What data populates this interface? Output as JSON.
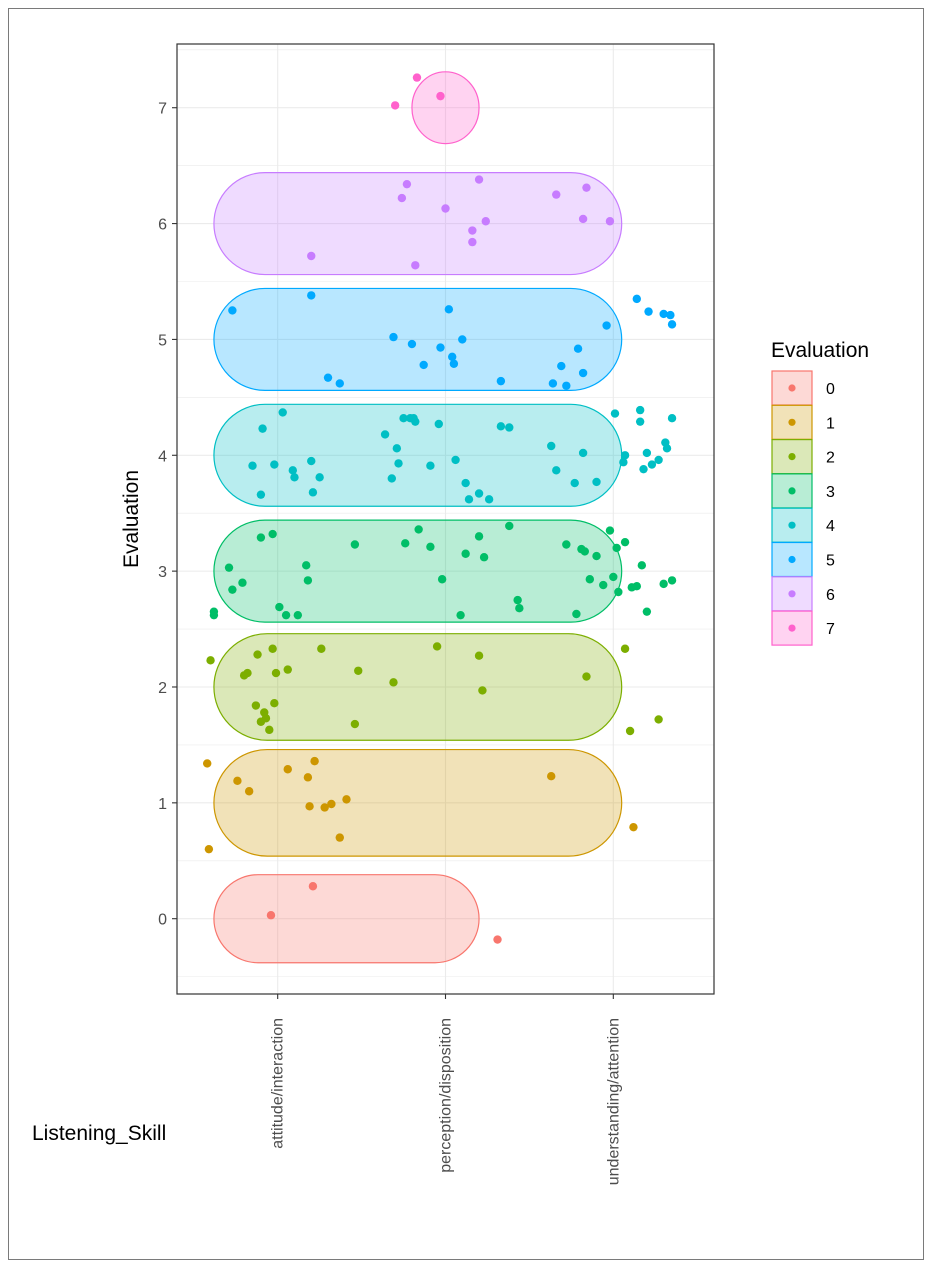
{
  "chart_data": {
    "type": "scatter",
    "title": "",
    "xlabel": "Listening_Skill",
    "ylabel": "Evaluation",
    "categories": [
      "attitude/interaction",
      "perception/disposition",
      "understanding/attention"
    ],
    "y_ticks": [
      0,
      1,
      2,
      3,
      4,
      5,
      6,
      7
    ],
    "ylim": [
      -0.65,
      7.55
    ],
    "xlim": [
      0.4,
      3.6
    ],
    "grid": true,
    "legend": {
      "title": "Evaluation",
      "position": "right",
      "entries": [
        "0",
        "1",
        "2",
        "3",
        "4",
        "5",
        "6",
        "7"
      ]
    },
    "colors": [
      "#F8766D",
      "#CD9600",
      "#7CAE00",
      "#00BE67",
      "#00BFC4",
      "#00A9FF",
      "#C77CFF",
      "#FF61CC"
    ],
    "ellipses": [
      {
        "group": "0",
        "x_range": [
          0.62,
          2.2
        ],
        "y_range": [
          -0.38,
          0.38
        ]
      },
      {
        "group": "1",
        "x_range": [
          0.62,
          3.05
        ],
        "y_range": [
          0.54,
          1.46
        ]
      },
      {
        "group": "2",
        "x_range": [
          0.62,
          3.05
        ],
        "y_range": [
          1.54,
          2.46
        ]
      },
      {
        "group": "3",
        "x_range": [
          0.62,
          3.05
        ],
        "y_range": [
          2.56,
          3.44
        ]
      },
      {
        "group": "4",
        "x_range": [
          0.62,
          3.05
        ],
        "y_range": [
          3.56,
          4.44
        ]
      },
      {
        "group": "5",
        "x_range": [
          0.62,
          3.05
        ],
        "y_range": [
          4.56,
          5.44
        ]
      },
      {
        "group": "6",
        "x_range": [
          0.62,
          3.05
        ],
        "y_range": [
          5.56,
          6.44
        ]
      },
      {
        "group": "7",
        "x_range": [
          1.8,
          2.2
        ],
        "y_range": [
          6.69,
          7.31
        ]
      }
    ],
    "series": [
      {
        "name": "0",
        "points": [
          [
            0.96,
            0.03
          ],
          [
            1.21,
            0.28
          ],
          [
            2.31,
            -0.18
          ]
        ]
      },
      {
        "name": "1",
        "points": [
          [
            0.58,
            1.34
          ],
          [
            0.59,
            0.6
          ],
          [
            0.76,
            1.19
          ],
          [
            0.83,
            1.1
          ],
          [
            1.06,
            1.29
          ],
          [
            1.18,
            1.22
          ],
          [
            1.19,
            0.97
          ],
          [
            1.22,
            1.36
          ],
          [
            1.28,
            0.96
          ],
          [
            1.32,
            0.99
          ],
          [
            1.37,
            0.7
          ],
          [
            1.41,
            1.03
          ],
          [
            2.63,
            1.23
          ],
          [
            3.12,
            0.79
          ]
        ]
      },
      {
        "name": "2",
        "points": [
          [
            0.6,
            2.23
          ],
          [
            0.8,
            2.1
          ],
          [
            0.82,
            2.12
          ],
          [
            0.87,
            1.84
          ],
          [
            0.88,
            2.28
          ],
          [
            0.9,
            1.7
          ],
          [
            0.92,
            1.78
          ],
          [
            0.93,
            1.73
          ],
          [
            0.95,
            1.63
          ],
          [
            0.97,
            2.33
          ],
          [
            0.98,
            1.86
          ],
          [
            0.99,
            2.12
          ],
          [
            1.06,
            2.15
          ],
          [
            1.26,
            2.33
          ],
          [
            1.46,
            1.68
          ],
          [
            1.48,
            2.14
          ],
          [
            1.69,
            2.04
          ],
          [
            1.95,
            2.35
          ],
          [
            2.2,
            2.27
          ],
          [
            2.22,
            1.97
          ],
          [
            2.84,
            2.09
          ],
          [
            3.07,
            2.33
          ],
          [
            3.1,
            1.62
          ],
          [
            3.27,
            1.72
          ]
        ]
      },
      {
        "name": "3",
        "points": [
          [
            0.62,
            2.65
          ],
          [
            0.62,
            2.62
          ],
          [
            0.71,
            3.03
          ],
          [
            0.73,
            2.84
          ],
          [
            0.79,
            2.9
          ],
          [
            0.9,
            3.29
          ],
          [
            0.97,
            3.32
          ],
          [
            1.01,
            2.69
          ],
          [
            1.05,
            2.62
          ],
          [
            1.12,
            2.62
          ],
          [
            1.17,
            3.05
          ],
          [
            1.18,
            2.92
          ],
          [
            1.46,
            3.23
          ],
          [
            1.76,
            3.24
          ],
          [
            1.84,
            3.36
          ],
          [
            1.91,
            3.21
          ],
          [
            1.98,
            2.93
          ],
          [
            2.09,
            2.62
          ],
          [
            2.12,
            3.15
          ],
          [
            2.2,
            3.3
          ],
          [
            2.23,
            3.12
          ],
          [
            2.38,
            3.39
          ],
          [
            2.43,
            2.75
          ],
          [
            2.44,
            2.68
          ],
          [
            2.72,
            3.23
          ],
          [
            2.78,
            2.63
          ],
          [
            2.81,
            3.19
          ],
          [
            2.83,
            3.17
          ],
          [
            2.86,
            2.93
          ],
          [
            2.9,
            3.13
          ],
          [
            2.94,
            2.88
          ],
          [
            2.98,
            3.35
          ],
          [
            3.0,
            2.95
          ],
          [
            3.02,
            3.2
          ],
          [
            3.03,
            2.82
          ],
          [
            3.07,
            3.25
          ],
          [
            3.11,
            2.86
          ],
          [
            3.14,
            2.87
          ],
          [
            3.17,
            3.05
          ],
          [
            3.2,
            2.65
          ],
          [
            3.3,
            2.89
          ],
          [
            3.35,
            2.92
          ]
        ]
      },
      {
        "name": "4",
        "points": [
          [
            0.85,
            3.91
          ],
          [
            0.9,
            3.66
          ],
          [
            0.91,
            4.23
          ],
          [
            0.98,
            3.92
          ],
          [
            1.03,
            4.37
          ],
          [
            1.09,
            3.87
          ],
          [
            1.1,
            3.81
          ],
          [
            1.2,
            3.95
          ],
          [
            1.21,
            3.68
          ],
          [
            1.25,
            3.81
          ],
          [
            1.64,
            4.18
          ],
          [
            1.68,
            3.8
          ],
          [
            1.71,
            4.06
          ],
          [
            1.72,
            3.93
          ],
          [
            1.75,
            4.32
          ],
          [
            1.79,
            4.32
          ],
          [
            1.81,
            4.32
          ],
          [
            1.82,
            4.29
          ],
          [
            1.91,
            3.91
          ],
          [
            1.96,
            4.27
          ],
          [
            2.06,
            3.96
          ],
          [
            2.12,
            3.76
          ],
          [
            2.14,
            3.62
          ],
          [
            2.2,
            3.67
          ],
          [
            2.26,
            3.62
          ],
          [
            2.33,
            4.25
          ],
          [
            2.38,
            4.24
          ],
          [
            2.63,
            4.08
          ],
          [
            2.66,
            3.87
          ],
          [
            2.77,
            3.76
          ],
          [
            2.82,
            4.02
          ],
          [
            2.9,
            3.77
          ],
          [
            3.01,
            4.36
          ],
          [
            3.06,
            3.94
          ],
          [
            3.07,
            4.0
          ],
          [
            3.16,
            4.39
          ],
          [
            3.16,
            4.29
          ],
          [
            3.18,
            3.88
          ],
          [
            3.2,
            4.02
          ],
          [
            3.23,
            3.92
          ],
          [
            3.27,
            3.96
          ],
          [
            3.31,
            4.11
          ],
          [
            3.32,
            4.06
          ],
          [
            3.35,
            4.32
          ]
        ]
      },
      {
        "name": "5",
        "points": [
          [
            0.73,
            5.25
          ],
          [
            1.2,
            5.38
          ],
          [
            1.3,
            4.67
          ],
          [
            1.37,
            4.62
          ],
          [
            1.69,
            5.02
          ],
          [
            1.8,
            4.96
          ],
          [
            1.87,
            4.78
          ],
          [
            1.97,
            4.93
          ],
          [
            2.02,
            5.26
          ],
          [
            2.04,
            4.85
          ],
          [
            2.05,
            4.79
          ],
          [
            2.1,
            5.0
          ],
          [
            2.33,
            4.64
          ],
          [
            2.64,
            4.62
          ],
          [
            2.69,
            4.77
          ],
          [
            2.72,
            4.6
          ],
          [
            2.79,
            4.92
          ],
          [
            2.82,
            4.71
          ],
          [
            2.96,
            5.12
          ],
          [
            3.14,
            5.35
          ],
          [
            3.21,
            5.24
          ],
          [
            3.3,
            5.22
          ],
          [
            3.34,
            5.21
          ],
          [
            3.35,
            5.13
          ]
        ]
      },
      {
        "name": "6",
        "points": [
          [
            1.2,
            5.72
          ],
          [
            1.74,
            6.22
          ],
          [
            1.77,
            6.34
          ],
          [
            1.82,
            5.64
          ],
          [
            2.0,
            6.13
          ],
          [
            2.16,
            5.94
          ],
          [
            2.16,
            5.84
          ],
          [
            2.2,
            6.38
          ],
          [
            2.24,
            6.02
          ],
          [
            2.66,
            6.25
          ],
          [
            2.82,
            6.04
          ],
          [
            2.84,
            6.31
          ],
          [
            2.98,
            6.02
          ]
        ]
      },
      {
        "name": "7",
        "points": [
          [
            1.7,
            7.02
          ],
          [
            1.83,
            7.26
          ],
          [
            1.97,
            7.1
          ]
        ]
      }
    ]
  }
}
